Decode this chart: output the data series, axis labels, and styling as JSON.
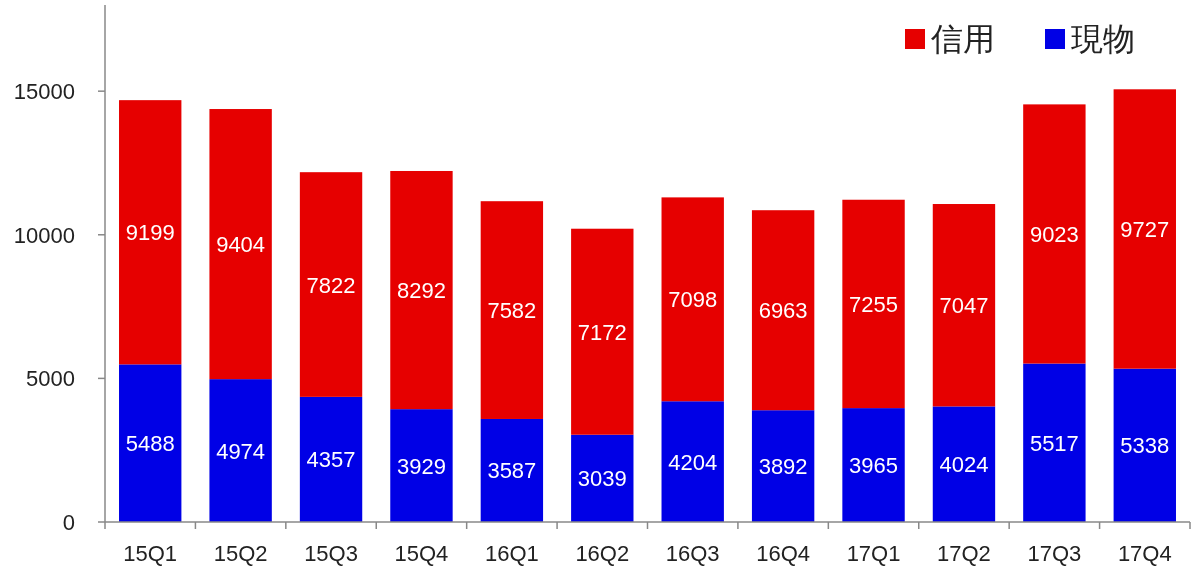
{
  "chart_data": {
    "type": "bar",
    "stacked": true,
    "data_labels": true,
    "legend": "top right",
    "grid": false,
    "categories": [
      "15Q1",
      "15Q2",
      "15Q3",
      "15Q4",
      "16Q1",
      "16Q2",
      "16Q3",
      "16Q4",
      "17Q1",
      "17Q2",
      "17Q3",
      "17Q4"
    ],
    "ylim": [
      0,
      18000
    ],
    "yticks": [
      0,
      5000,
      10000,
      15000
    ],
    "series": [
      {
        "name": "現物",
        "color": "#0000e6",
        "values": [
          5488,
          4974,
          4357,
          3929,
          3587,
          3039,
          4204,
          3892,
          3965,
          4024,
          5517,
          5338
        ]
      },
      {
        "name": "信用",
        "color": "#e60000",
        "values": [
          9199,
          9404,
          7822,
          8292,
          7582,
          7172,
          7098,
          6963,
          7255,
          7047,
          9023,
          9727
        ]
      }
    ]
  }
}
